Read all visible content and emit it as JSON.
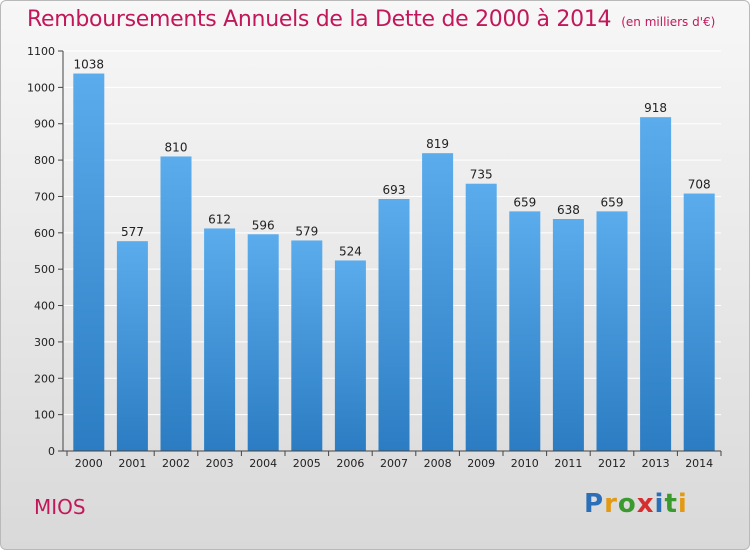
{
  "header": {
    "title": "Remboursements Annuels de la Dette de 2000 à 2014",
    "subtitle": "(en milliers d'€)"
  },
  "footer": {
    "commune": "MIOS",
    "logo": [
      "P",
      "r",
      "o",
      "x",
      "i",
      "t",
      "i"
    ],
    "logo_colors": [
      "#2a6fb8",
      "#e39a12",
      "#3a9a2e",
      "#d62e2e",
      "#2a6fb8",
      "#3a9a2e",
      "#e39a12"
    ]
  },
  "colors": {
    "bar_light": "#5aacec",
    "bar_dark": "#2b7cc2",
    "grid": "#ffffff"
  },
  "chart_data": {
    "type": "bar",
    "title": "Remboursements Annuels de la Dette de 2000 à 2014",
    "subtitle": "(en milliers d'€)",
    "xlabel": "",
    "ylabel": "",
    "categories": [
      "2000",
      "2001",
      "2002",
      "2003",
      "2004",
      "2005",
      "2006",
      "2007",
      "2008",
      "2009",
      "2010",
      "2011",
      "2012",
      "2013",
      "2014"
    ],
    "values": [
      1038,
      577,
      810,
      612,
      596,
      579,
      524,
      693,
      819,
      735,
      659,
      638,
      659,
      918,
      708
    ],
    "value_labels": [
      "1038",
      "577",
      "810",
      "612",
      "596",
      "579",
      "524",
      "693",
      "819",
      "735",
      "659",
      "638",
      "659",
      "918",
      "708"
    ],
    "ylim": [
      0,
      1100
    ],
    "yticks": [
      "0",
      "100",
      "200",
      "300",
      "400",
      "500",
      "600",
      "700",
      "800",
      "900",
      "1000",
      "1100"
    ],
    "grid": true,
    "legend": "none"
  }
}
